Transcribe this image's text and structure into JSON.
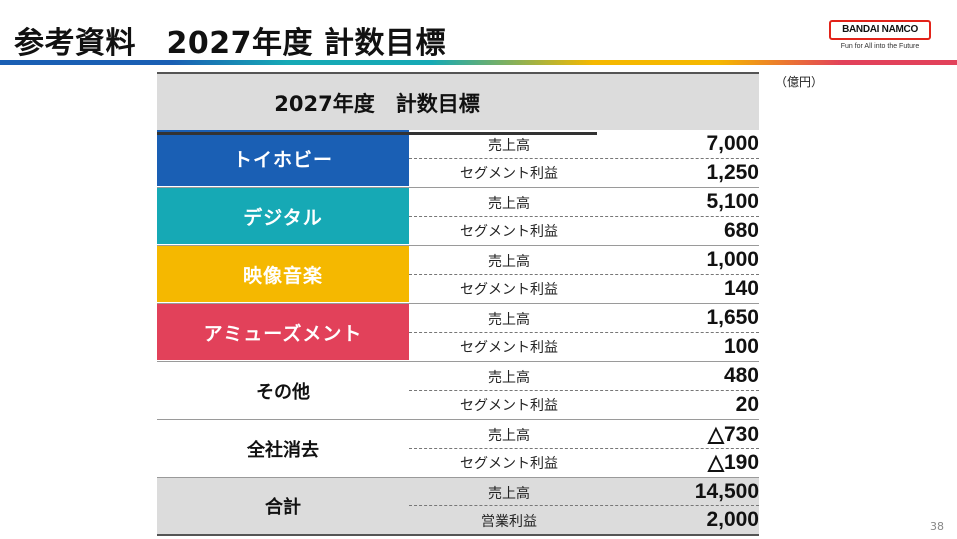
{
  "header": {
    "title": "参考資料　2027年度 計数目標",
    "logo_text": "BANDAI NAMCO",
    "logo_tagline": "Fun for All into the Future"
  },
  "unit_label": "（億円）",
  "table": {
    "title": "2027年度　計数目標",
    "segments": [
      {
        "label": "トイホビー",
        "color": "#1a5fb4",
        "rows": [
          {
            "label": "売上高",
            "value": "7,000"
          },
          {
            "label": "セグメント利益",
            "value": "1,250"
          }
        ]
      },
      {
        "label": "デジタル",
        "color": "#16a9b5",
        "rows": [
          {
            "label": "売上高",
            "value": "5,100"
          },
          {
            "label": "セグメント利益",
            "value": "680"
          }
        ]
      },
      {
        "label": "映像音楽",
        "color": "#f5b800",
        "rows": [
          {
            "label": "売上高",
            "value": "1,000"
          },
          {
            "label": "セグメント利益",
            "value": "140"
          }
        ]
      },
      {
        "label": "アミューズメント",
        "color": "#e2415a",
        "rows": [
          {
            "label": "売上高",
            "value": "1,650"
          },
          {
            "label": "セグメント利益",
            "value": "100"
          }
        ]
      },
      {
        "label": "その他",
        "color": "",
        "rows": [
          {
            "label": "売上高",
            "value": "480"
          },
          {
            "label": "セグメント利益",
            "value": "20"
          }
        ]
      },
      {
        "label": "全社消去",
        "color": "",
        "rows": [
          {
            "label": "売上高",
            "value": "△730"
          },
          {
            "label": "セグメント利益",
            "value": "△190"
          }
        ]
      },
      {
        "label": "合計",
        "color": "",
        "total": true,
        "rows": [
          {
            "label": "売上高",
            "value": "14,500"
          },
          {
            "label": "営業利益",
            "value": "2,000"
          }
        ]
      }
    ]
  },
  "page_number": "38"
}
